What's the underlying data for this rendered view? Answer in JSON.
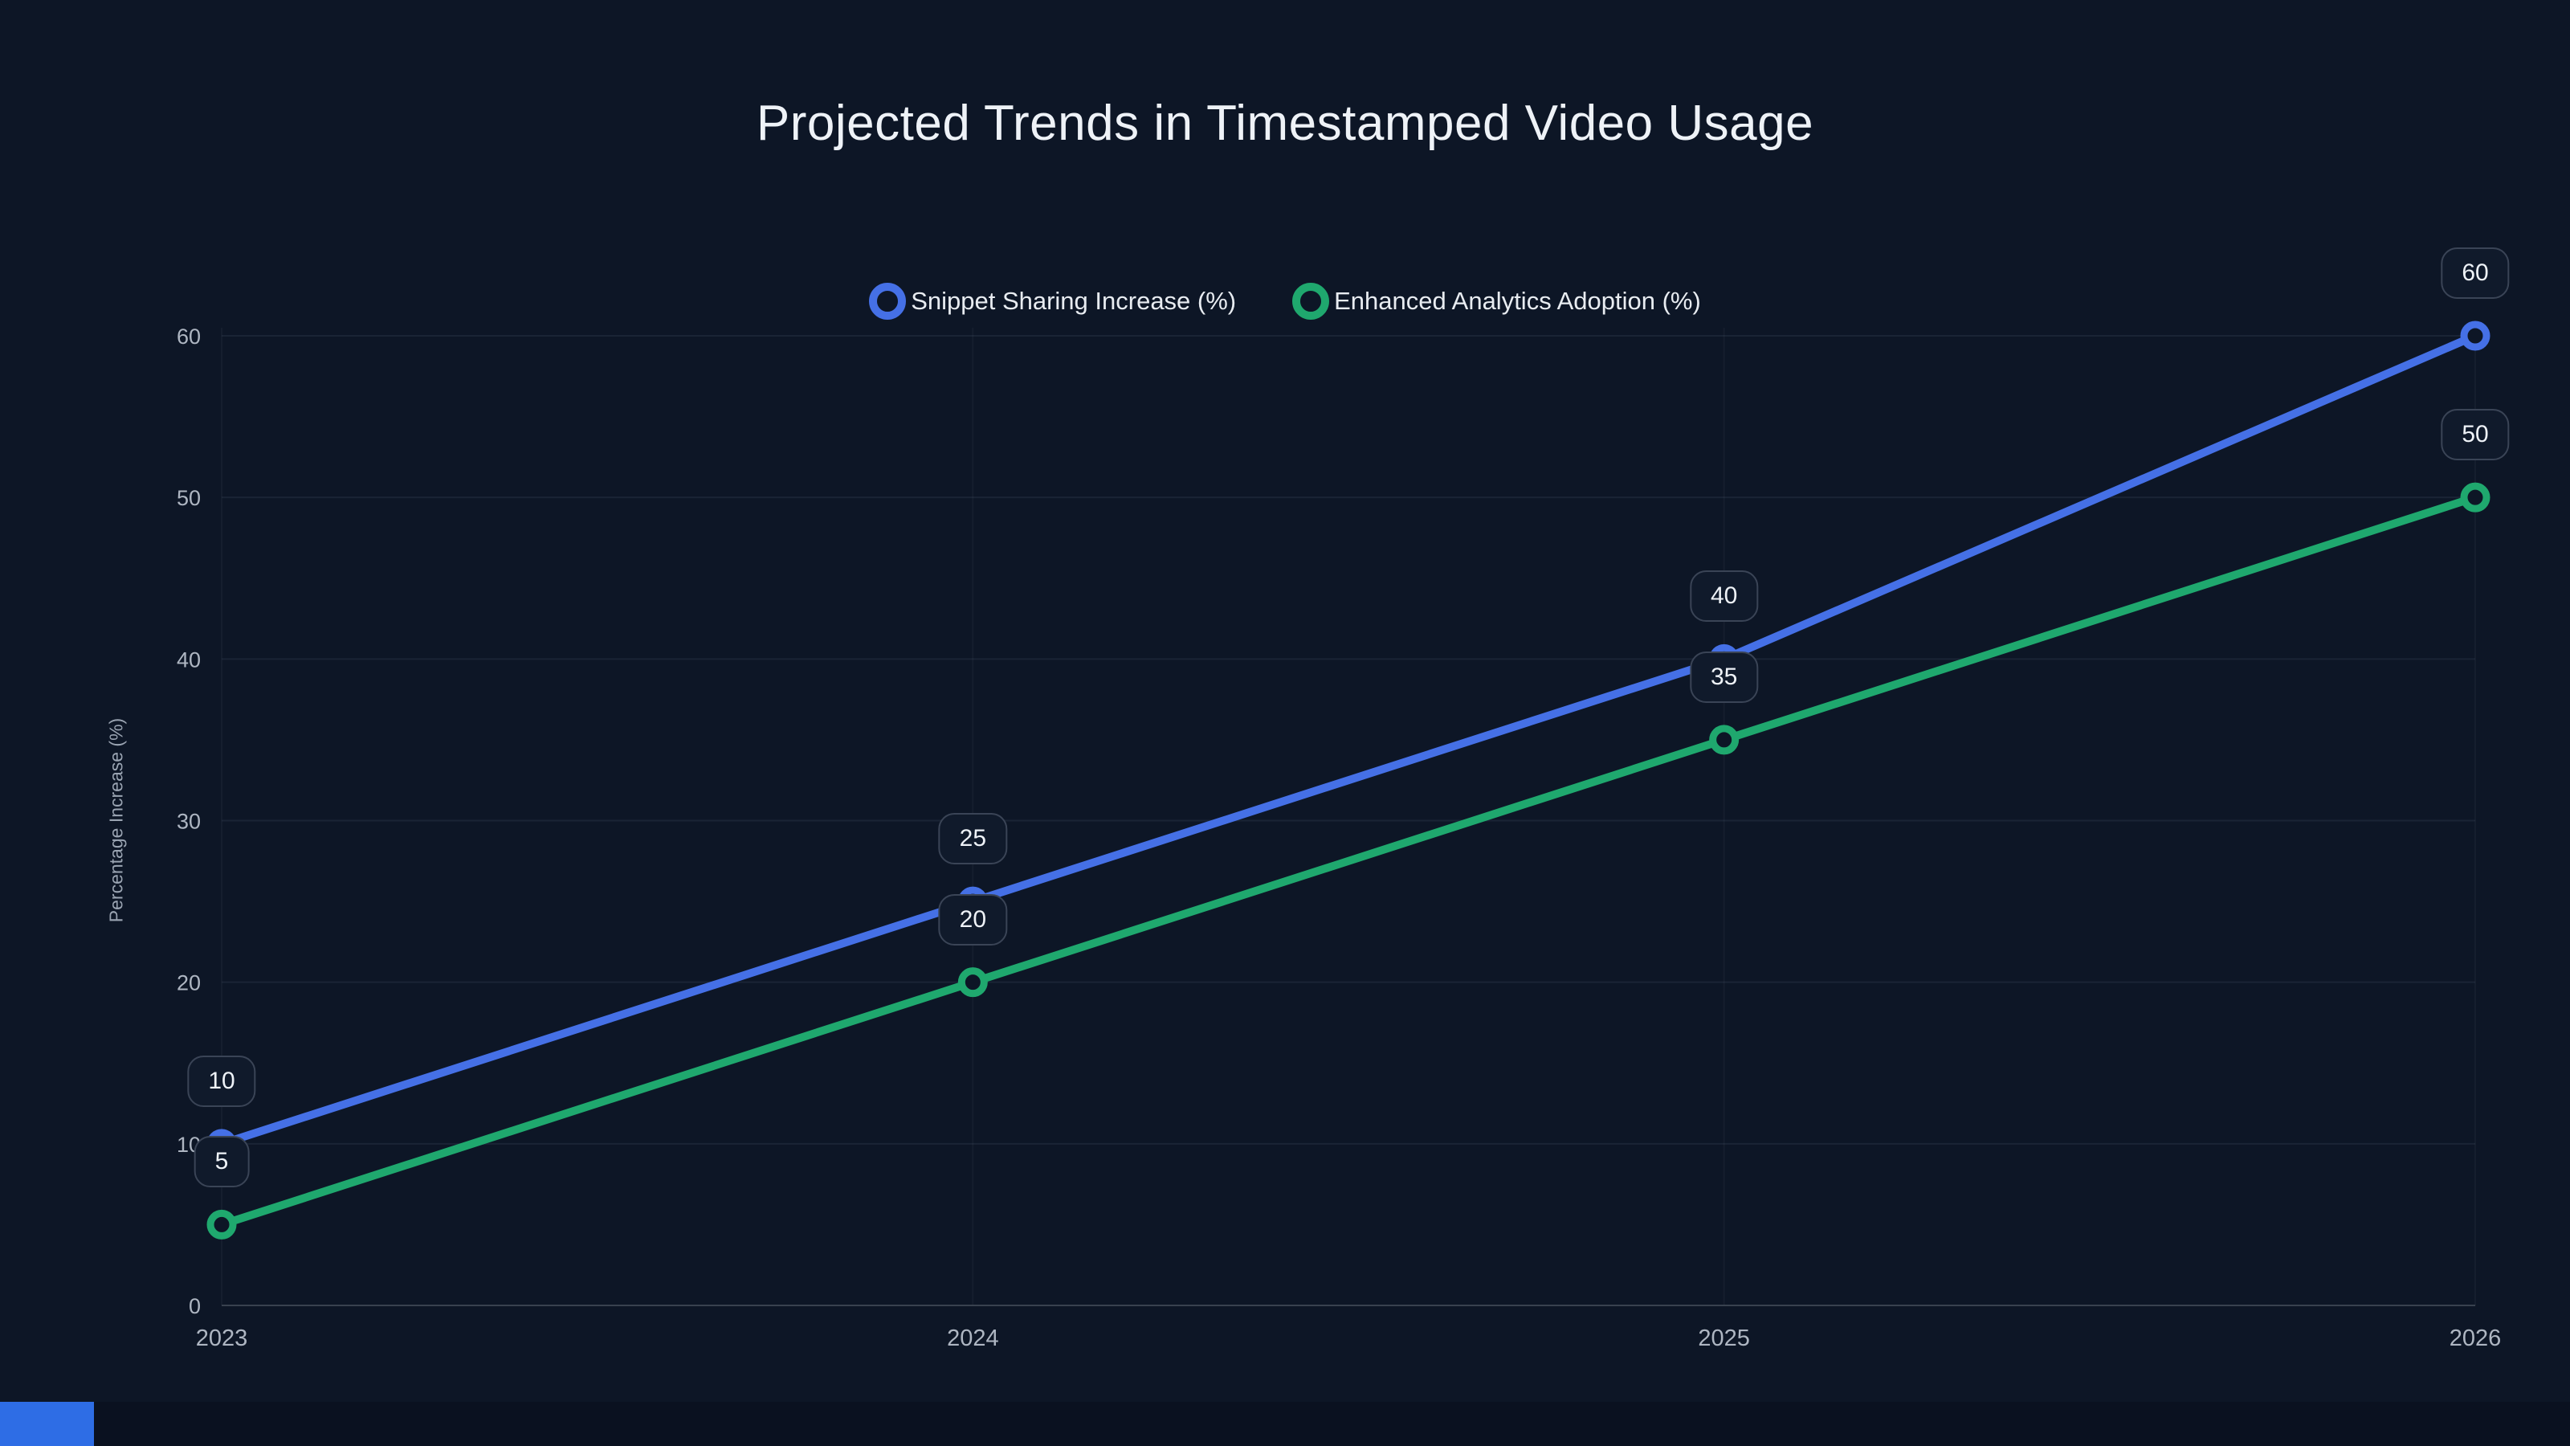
{
  "page": {
    "background": "#0d1626"
  },
  "chart_data": {
    "type": "line",
    "title": "Projected Trends in Timestamped Video Usage",
    "xlabel": "",
    "ylabel": "Percentage Increase (%)",
    "categories": [
      "2023",
      "2024",
      "2025",
      "2026"
    ],
    "series": [
      {
        "name": "Snippet Sharing Increase (%)",
        "color": "#4570e6",
        "values": [
          10,
          25,
          40,
          60
        ]
      },
      {
        "name": "Enhanced Analytics Adoption (%)",
        "color": "#1fa86e",
        "values": [
          5,
          20,
          35,
          50
        ]
      }
    ],
    "ylim": [
      0,
      60
    ],
    "yticks": [
      0,
      10,
      20,
      30,
      40,
      50,
      60
    ],
    "grid": true,
    "legend_position": "top-center",
    "point_labels": true,
    "marker_style": "open-circle",
    "point_fill": "#0d1626",
    "grid_color": "rgba(148,163,184,0.10)",
    "vgrid_color": "rgba(148,163,184,0.06)",
    "axis_color": "#39424f",
    "badge_border": "#3a4456"
  },
  "footer": {
    "accent_color": "#2e6de5"
  }
}
